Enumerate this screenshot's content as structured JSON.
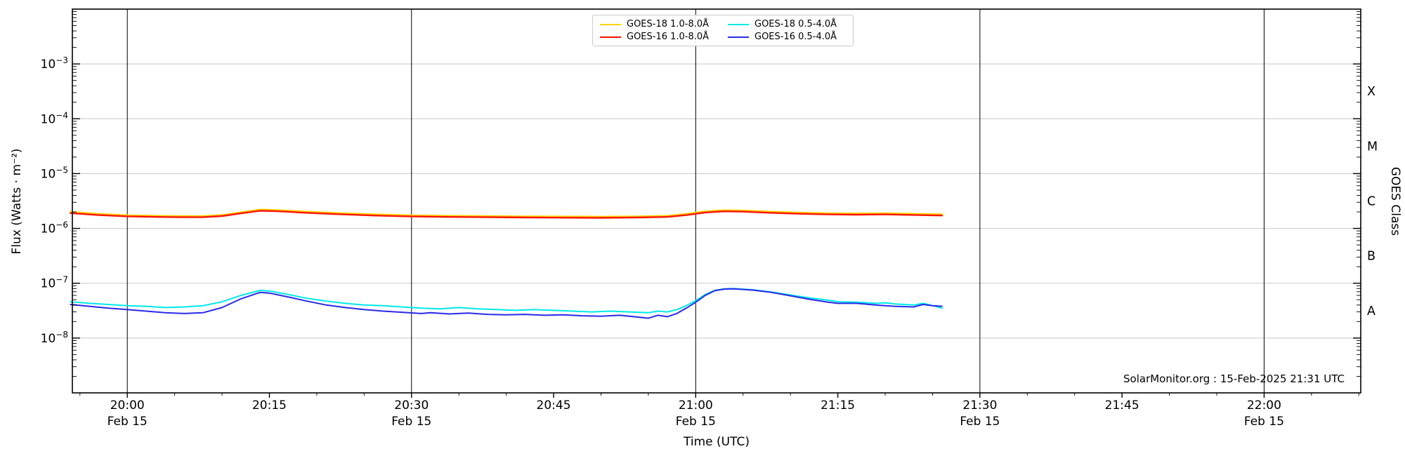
{
  "chart_data": {
    "type": "line",
    "xlabel": "Time (UTC)",
    "ylabel": "Flux (Watts · m⁻²)",
    "ylabel_right": "GOES Class",
    "annotation": "SolarMonitor.org : 15-Feb-2025 21:31 UTC",
    "x_axis": {
      "unit": "minutes after 20:00 UTC",
      "range_min": -5.8,
      "range_max": 130.2,
      "minor_tick_interval_min": 5,
      "ticks": [
        {
          "label": "20:00",
          "min": 0,
          "date": "Feb 15",
          "gridline": true
        },
        {
          "label": "20:15",
          "min": 15
        },
        {
          "label": "20:30",
          "min": 30,
          "date": "Feb 15",
          "gridline": true
        },
        {
          "label": "20:45",
          "min": 45
        },
        {
          "label": "21:00",
          "min": 60,
          "date": "Feb 15",
          "gridline": true
        },
        {
          "label": "21:15",
          "min": 75
        },
        {
          "label": "21:30",
          "min": 90,
          "date": "Feb 15",
          "gridline": true
        },
        {
          "label": "21:45",
          "min": 105
        },
        {
          "label": "22:00",
          "min": 120,
          "date": "Feb 15",
          "gridline": true
        }
      ]
    },
    "y_axis": {
      "scale": "log",
      "min_exp": -9,
      "max_exp": -2,
      "labeled_exps": [
        -3,
        -4,
        -5,
        -6,
        -7,
        -8
      ],
      "gridline_color": "#c8c8c8"
    },
    "goes_classes": [
      {
        "label": "X",
        "mid_exp": -3.5
      },
      {
        "label": "M",
        "mid_exp": -4.5
      },
      {
        "label": "C",
        "mid_exp": -5.5
      },
      {
        "label": "B",
        "mid_exp": -6.5
      },
      {
        "label": "A",
        "mid_exp": -7.5
      }
    ],
    "legend": {
      "position": "top-center",
      "columns": 2,
      "display_order": [
        0,
        2,
        1,
        3
      ]
    },
    "series": [
      {
        "name": "GOES-18 1.0-8.0Å",
        "color": "#ffd400",
        "width": 2.4,
        "points": [
          [
            -6,
            2e-06
          ],
          [
            -3,
            1.84e-06
          ],
          [
            0,
            1.74e-06
          ],
          [
            3,
            1.7e-06
          ],
          [
            6,
            1.68e-06
          ],
          [
            8,
            1.68e-06
          ],
          [
            10,
            1.76e-06
          ],
          [
            12,
            1.97e-06
          ],
          [
            14,
            2.21e-06
          ],
          [
            16,
            2.15e-06
          ],
          [
            19,
            2.02e-06
          ],
          [
            22,
            1.91e-06
          ],
          [
            26,
            1.81e-06
          ],
          [
            30,
            1.73e-06
          ],
          [
            34,
            1.7e-06
          ],
          [
            38,
            1.68e-06
          ],
          [
            42,
            1.66e-06
          ],
          [
            46,
            1.65e-06
          ],
          [
            50,
            1.64e-06
          ],
          [
            54,
            1.66e-06
          ],
          [
            57,
            1.7e-06
          ],
          [
            59,
            1.84e-06
          ],
          [
            61,
            2.05e-06
          ],
          [
            63,
            2.15e-06
          ],
          [
            65,
            2.12e-06
          ],
          [
            68,
            2.02e-06
          ],
          [
            71,
            1.94e-06
          ],
          [
            74,
            1.89e-06
          ],
          [
            77,
            1.87e-06
          ],
          [
            80,
            1.89e-06
          ],
          [
            83,
            1.85e-06
          ],
          [
            86,
            1.81e-06
          ]
        ]
      },
      {
        "name": "GOES-16 1.0-8.0Å",
        "color": "#fb1507",
        "width": 2.4,
        "points": [
          [
            -6,
            1.9e-06
          ],
          [
            -3,
            1.75e-06
          ],
          [
            0,
            1.66e-06
          ],
          [
            3,
            1.62e-06
          ],
          [
            6,
            1.6e-06
          ],
          [
            8,
            1.6e-06
          ],
          [
            10,
            1.68e-06
          ],
          [
            12,
            1.88e-06
          ],
          [
            14,
            2.1e-06
          ],
          [
            16,
            2.05e-06
          ],
          [
            19,
            1.92e-06
          ],
          [
            22,
            1.82e-06
          ],
          [
            26,
            1.72e-06
          ],
          [
            30,
            1.65e-06
          ],
          [
            34,
            1.62e-06
          ],
          [
            38,
            1.6e-06
          ],
          [
            42,
            1.58e-06
          ],
          [
            46,
            1.57e-06
          ],
          [
            50,
            1.56e-06
          ],
          [
            54,
            1.58e-06
          ],
          [
            57,
            1.62e-06
          ],
          [
            59,
            1.75e-06
          ],
          [
            61,
            1.95e-06
          ],
          [
            63,
            2.05e-06
          ],
          [
            65,
            2.02e-06
          ],
          [
            68,
            1.92e-06
          ],
          [
            71,
            1.85e-06
          ],
          [
            74,
            1.8e-06
          ],
          [
            77,
            1.78e-06
          ],
          [
            80,
            1.8e-06
          ],
          [
            83,
            1.76e-06
          ],
          [
            86,
            1.72e-06
          ]
        ]
      },
      {
        "name": "GOES-18 0.5-4.0Å",
        "color": "#00e9e9",
        "width": 2,
        "points": [
          [
            -6,
            4.6e-08
          ],
          [
            -4,
            4.3e-08
          ],
          [
            -2,
            4.1e-08
          ],
          [
            0,
            3.9e-08
          ],
          [
            2,
            3.8e-08
          ],
          [
            4,
            3.6e-08
          ],
          [
            6,
            3.7e-08
          ],
          [
            8,
            3.9e-08
          ],
          [
            10,
            4.6e-08
          ],
          [
            12,
            6e-08
          ],
          [
            14,
            7.4e-08
          ],
          [
            15,
            7.2e-08
          ],
          [
            17,
            6.2e-08
          ],
          [
            19,
            5.3e-08
          ],
          [
            21,
            4.7e-08
          ],
          [
            23,
            4.3e-08
          ],
          [
            25,
            4e-08
          ],
          [
            27,
            3.9e-08
          ],
          [
            29,
            3.7e-08
          ],
          [
            31,
            3.5e-08
          ],
          [
            33,
            3.4e-08
          ],
          [
            35,
            3.6e-08
          ],
          [
            37,
            3.4e-08
          ],
          [
            39,
            3.3e-08
          ],
          [
            41,
            3.2e-08
          ],
          [
            43,
            3.3e-08
          ],
          [
            45,
            3.2e-08
          ],
          [
            47,
            3.1e-08
          ],
          [
            49,
            3e-08
          ],
          [
            51,
            3.1e-08
          ],
          [
            53,
            3e-08
          ],
          [
            55,
            2.9e-08
          ],
          [
            56,
            3.1e-08
          ],
          [
            57,
            3e-08
          ],
          [
            58,
            3.3e-08
          ],
          [
            59,
            3.9e-08
          ],
          [
            60,
            4.8e-08
          ],
          [
            61,
            6.2e-08
          ],
          [
            62,
            7.4e-08
          ],
          [
            63,
            7.9e-08
          ],
          [
            64,
            8e-08
          ],
          [
            66,
            7.6e-08
          ],
          [
            68,
            6.9e-08
          ],
          [
            70,
            6.1e-08
          ],
          [
            72,
            5.4e-08
          ],
          [
            74,
            4.9e-08
          ],
          [
            75,
            4.6e-08
          ],
          [
            77,
            4.5e-08
          ],
          [
            79,
            4.3e-08
          ],
          [
            80,
            4.4e-08
          ],
          [
            81,
            4.2e-08
          ],
          [
            83,
            4e-08
          ],
          [
            84,
            4.3e-08
          ],
          [
            85,
            3.9e-08
          ],
          [
            86,
            3.5e-08
          ]
        ]
      },
      {
        "name": "GOES-16 0.5-4.0Å",
        "color": "#2a2ae8",
        "width": 2,
        "points": [
          [
            -6,
            4.1e-08
          ],
          [
            -4,
            3.8e-08
          ],
          [
            -2,
            3.5e-08
          ],
          [
            0,
            3.3e-08
          ],
          [
            2,
            3.1e-08
          ],
          [
            4,
            2.9e-08
          ],
          [
            6,
            2.8e-08
          ],
          [
            8,
            2.9e-08
          ],
          [
            10,
            3.6e-08
          ],
          [
            12,
            5.2e-08
          ],
          [
            14,
            6.8e-08
          ],
          [
            15,
            6.6e-08
          ],
          [
            17,
            5.6e-08
          ],
          [
            19,
            4.7e-08
          ],
          [
            21,
            4e-08
          ],
          [
            23,
            3.6e-08
          ],
          [
            25,
            3.3e-08
          ],
          [
            27,
            3.1e-08
          ],
          [
            29,
            2.95e-08
          ],
          [
            31,
            2.8e-08
          ],
          [
            32,
            2.9e-08
          ],
          [
            34,
            2.75e-08
          ],
          [
            36,
            2.85e-08
          ],
          [
            38,
            2.7e-08
          ],
          [
            40,
            2.65e-08
          ],
          [
            42,
            2.7e-08
          ],
          [
            44,
            2.6e-08
          ],
          [
            46,
            2.65e-08
          ],
          [
            48,
            2.55e-08
          ],
          [
            50,
            2.5e-08
          ],
          [
            52,
            2.6e-08
          ],
          [
            54,
            2.4e-08
          ],
          [
            55,
            2.3e-08
          ],
          [
            56,
            2.6e-08
          ],
          [
            57,
            2.45e-08
          ],
          [
            58,
            2.8e-08
          ],
          [
            59,
            3.5e-08
          ],
          [
            60,
            4.5e-08
          ],
          [
            61,
            6e-08
          ],
          [
            62,
            7.3e-08
          ],
          [
            63,
            7.8e-08
          ],
          [
            64,
            7.9e-08
          ],
          [
            66,
            7.5e-08
          ],
          [
            68,
            6.8e-08
          ],
          [
            70,
            5.9e-08
          ],
          [
            72,
            5.1e-08
          ],
          [
            74,
            4.5e-08
          ],
          [
            75,
            4.3e-08
          ],
          [
            77,
            4.3e-08
          ],
          [
            79,
            4e-08
          ],
          [
            80,
            3.9e-08
          ],
          [
            81,
            3.8e-08
          ],
          [
            83,
            3.7e-08
          ],
          [
            84,
            4.1e-08
          ],
          [
            85,
            3.9e-08
          ],
          [
            86,
            3.8e-08
          ]
        ]
      }
    ]
  },
  "colors": {
    "background": "#ffffff",
    "spine": "#000000",
    "vertical_gridline": "#000000",
    "horizontal_gridline": "#c8c8c8",
    "text": "#000000"
  }
}
